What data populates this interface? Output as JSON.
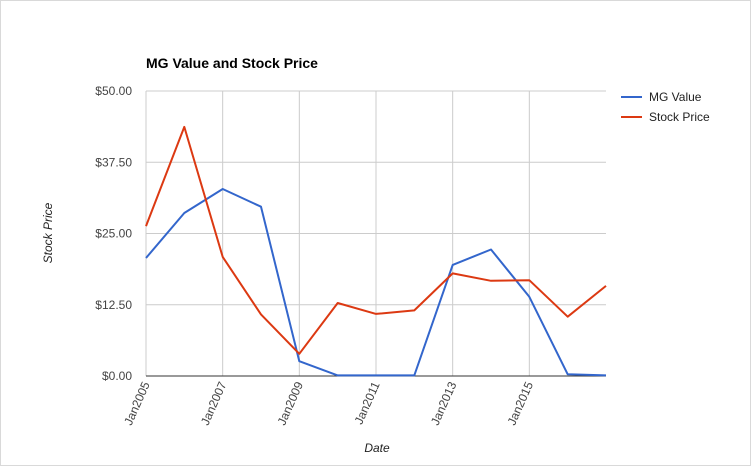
{
  "chart_data": {
    "type": "line",
    "title": "MG Value and Stock Price",
    "xlabel": "Date",
    "ylabel": "Stock Price",
    "x": [
      2005,
      2006,
      2007,
      2008,
      2009,
      2010,
      2011,
      2012,
      2013,
      2014,
      2015,
      2016,
      2017
    ],
    "x_tick_values": [
      2005,
      2007,
      2009,
      2011,
      2013,
      2015
    ],
    "x_tick_labels": [
      "Jan2005",
      "Jan2007",
      "Jan2009",
      "Jan2011",
      "Jan2013",
      "Jan2015"
    ],
    "y_tick_values": [
      0,
      12.5,
      25,
      37.5,
      50
    ],
    "y_tick_labels": [
      "$0.00",
      "$12.50",
      "$25.00",
      "$37.50",
      "$50.00"
    ],
    "ylim": [
      0,
      50
    ],
    "grid": true,
    "legend_position": "right",
    "series": [
      {
        "name": "MG Value",
        "color": "#3366cc",
        "values": [
          20.7,
          28.6,
          32.8,
          29.7,
          2.6,
          0.1,
          0.1,
          0.1,
          19.5,
          22.2,
          13.9,
          0.3,
          0.1
        ]
      },
      {
        "name": "Stock Price",
        "color": "#dc3912",
        "values": [
          26.3,
          43.7,
          20.9,
          10.8,
          3.9,
          12.8,
          10.9,
          11.5,
          18.0,
          16.7,
          16.8,
          10.4,
          15.8
        ]
      }
    ]
  }
}
